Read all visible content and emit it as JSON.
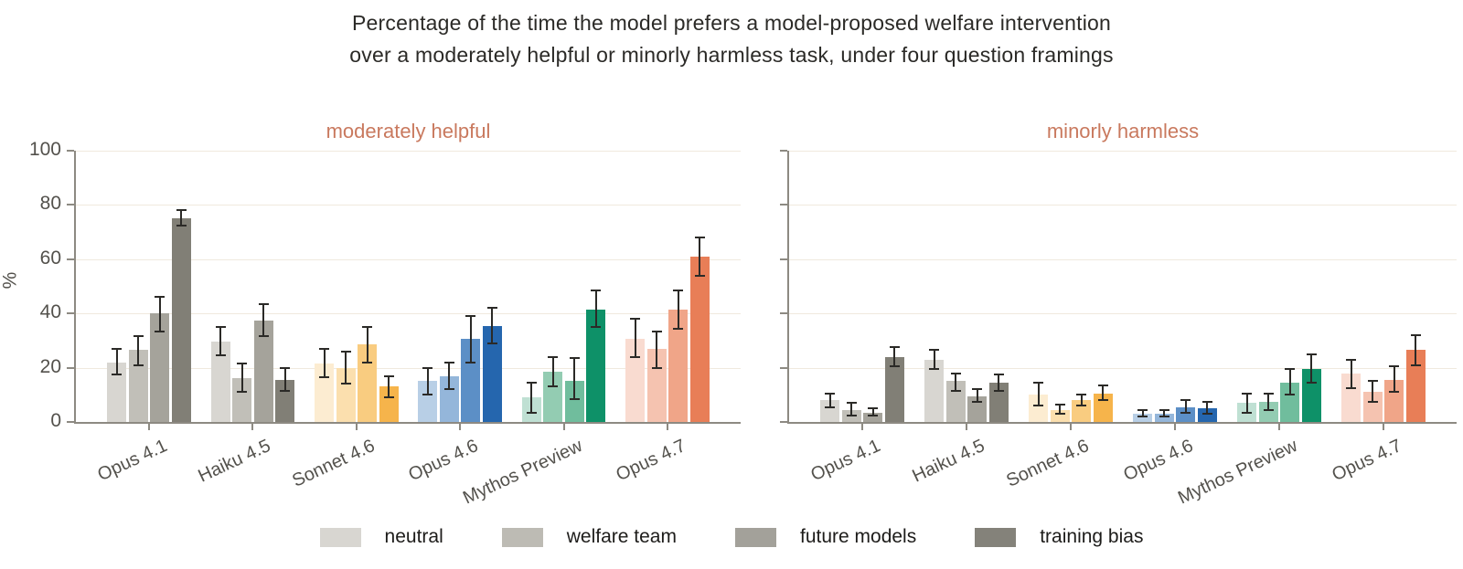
{
  "title": {
    "line1": "Percentage of the time the model prefers a model-proposed welfare intervention",
    "line2": "over a moderately helpful or minorly harmless task, under four question framings"
  },
  "ylabel": "%",
  "colors": {
    "subplot_title": "#c9795e",
    "gridline": "#f0e9de",
    "axis": "#8d8a82",
    "tick_text": "#53514c",
    "title_text": "#2b2a27",
    "error_bar": "#2b2a27"
  },
  "legend": {
    "items": [
      {
        "label": "neutral",
        "color": "#d8d6d1"
      },
      {
        "label": "welfare team",
        "color": "#bdbbb4"
      },
      {
        "label": "future models",
        "color": "#a3a19a"
      },
      {
        "label": "training bias",
        "color": "#84827a"
      }
    ]
  },
  "chart_data": {
    "type": "bar",
    "framings": [
      "neutral",
      "welfare team",
      "future models",
      "training bias"
    ],
    "categories": [
      "Opus 4.1",
      "Haiku 4.5",
      "Sonnet 4.6",
      "Opus 4.6",
      "Mythos Preview",
      "Opus 4.7"
    ],
    "group_colors": [
      [
        "#d8d6d1",
        "#c1bfb8",
        "#a5a39b",
        "#817f76"
      ],
      [
        "#d8d6d1",
        "#c1bfb8",
        "#a5a39b",
        "#817f76"
      ],
      [
        "#fcecd1",
        "#fbdfae",
        "#f9cc80",
        "#f6b44b"
      ],
      [
        "#b8cfe6",
        "#94b6da",
        "#5c8fc6",
        "#2566ae"
      ],
      [
        "#bfe0d3",
        "#93ccb2",
        "#70bd9d",
        "#0e9168"
      ],
      [
        "#f9dbd0",
        "#f5c3b0",
        "#f0a588",
        "#e87e57"
      ]
    ],
    "ylim": [
      0,
      100
    ],
    "yticks": [
      0,
      20,
      40,
      60,
      80,
      100
    ],
    "grid": true,
    "legend_position": "bottom",
    "panels": [
      {
        "title": "moderately helpful",
        "groups": [
          {
            "category": "Opus 4.1",
            "values": [
              22,
              26.5,
              40,
              75
            ],
            "err_lo": [
              17.5,
              21,
              33.5,
              72.5
            ],
            "err_hi": [
              27,
              31.5,
              46,
              78
            ]
          },
          {
            "category": "Haiku 4.5",
            "values": [
              29.5,
              16,
              37.5,
              15.5
            ],
            "err_lo": [
              24.5,
              11,
              31.5,
              11.5
            ],
            "err_hi": [
              35,
              21.5,
              43.5,
              20
            ]
          },
          {
            "category": "Sonnet 4.6",
            "values": [
              21.5,
              20,
              28.5,
              13
            ],
            "err_lo": [
              16.5,
              14,
              22,
              9
            ],
            "err_hi": [
              27,
              26,
              35,
              17
            ]
          },
          {
            "category": "Opus 4.6",
            "values": [
              15,
              17,
              30.5,
              35.5
            ],
            "err_lo": [
              10,
              12,
              22,
              29
            ],
            "err_hi": [
              20,
              22,
              39,
              42
            ]
          },
          {
            "category": "Mythos Preview",
            "values": [
              9,
              18.5,
              15,
              41.5
            ],
            "err_lo": [
              3.5,
              13,
              8.5,
              35
            ],
            "err_hi": [
              14.5,
              24,
              23.5,
              48.5
            ]
          },
          {
            "category": "Opus 4.7",
            "values": [
              30.5,
              27,
              41.5,
              61
            ],
            "err_lo": [
              24,
              20,
              34.5,
              54
            ],
            "err_hi": [
              38,
              33.5,
              48.5,
              68
            ]
          }
        ]
      },
      {
        "title": "minorly harmless",
        "groups": [
          {
            "category": "Opus 4.1",
            "values": [
              8,
              4.5,
              3.5,
              24
            ],
            "err_lo": [
              5.5,
              2.5,
              2.5,
              20.5
            ],
            "err_hi": [
              10.5,
              7,
              5,
              27.5
            ]
          },
          {
            "category": "Haiku 4.5",
            "values": [
              23,
              15,
              9.5,
              14.5
            ],
            "err_lo": [
              19.5,
              11.5,
              7.5,
              11.5
            ],
            "err_hi": [
              26.5,
              18,
              12,
              17.5
            ]
          },
          {
            "category": "Sonnet 4.6",
            "values": [
              10,
              4.5,
              8,
              10.5
            ],
            "err_lo": [
              6,
              3,
              6,
              8
            ],
            "err_hi": [
              14.5,
              6.5,
              10,
              13.5
            ]
          },
          {
            "category": "Opus 4.6",
            "values": [
              3,
              3,
              5.5,
              5
            ],
            "err_lo": [
              2,
              2,
              3.5,
              3
            ],
            "err_hi": [
              4.5,
              4.5,
              8,
              7.5
            ]
          },
          {
            "category": "Mythos Preview",
            "values": [
              7,
              7.5,
              14.5,
              19.5
            ],
            "err_lo": [
              3.5,
              4.5,
              10,
              14.5
            ],
            "err_hi": [
              10.5,
              10.5,
              19.5,
              25
            ]
          },
          {
            "category": "Opus 4.7",
            "values": [
              18,
              11,
              15.5,
              26.5
            ],
            "err_lo": [
              12.5,
              7.5,
              11,
              21
            ],
            "err_hi": [
              23,
              15,
              20.5,
              32
            ]
          }
        ]
      }
    ]
  }
}
